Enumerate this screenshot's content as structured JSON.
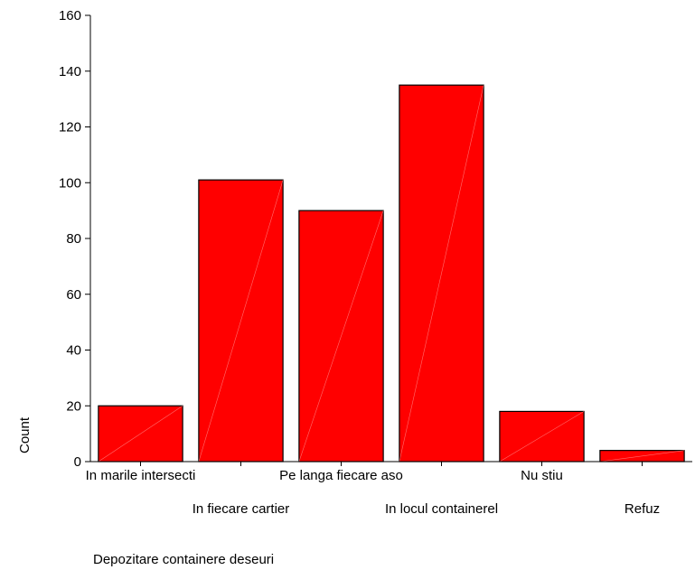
{
  "chart_data": {
    "type": "bar",
    "categories": [
      "In marile intersecti",
      "In fiecare cartier",
      "Pe langa fiecare aso",
      "In locul containerel",
      "Nu stiu",
      "Refuz"
    ],
    "values": [
      20,
      101,
      90,
      135,
      18,
      4
    ],
    "xlabel": "Depozitare containere deseuri",
    "ylabel": "Count",
    "ylim": [
      0,
      160
    ],
    "yticks": [
      0,
      20,
      40,
      60,
      80,
      100,
      120,
      140,
      160
    ],
    "grid": false,
    "bar_color": "#ff0000",
    "bar_edge_color": "#000000"
  }
}
